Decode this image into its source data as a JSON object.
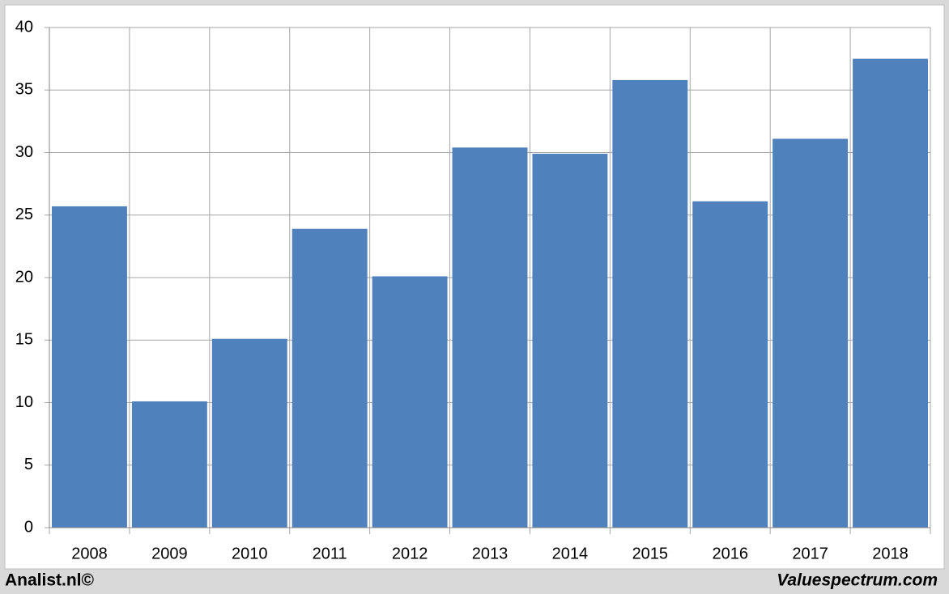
{
  "chart_data": {
    "type": "bar",
    "categories": [
      "2008",
      "2009",
      "2010",
      "2011",
      "2012",
      "2013",
      "2014",
      "2015",
      "2016",
      "2017",
      "2018"
    ],
    "values": [
      25.7,
      10.1,
      15.1,
      23.9,
      20.1,
      30.4,
      29.9,
      35.8,
      26.1,
      31.1,
      37.5
    ],
    "color": "#4f81bd",
    "ylim": [
      0,
      40
    ],
    "yticks": [
      0,
      5,
      10,
      15,
      20,
      25,
      30,
      35,
      40
    ],
    "grid": true
  },
  "footer": {
    "left": "Analist.nl©",
    "right": "Valuespectrum.com"
  }
}
